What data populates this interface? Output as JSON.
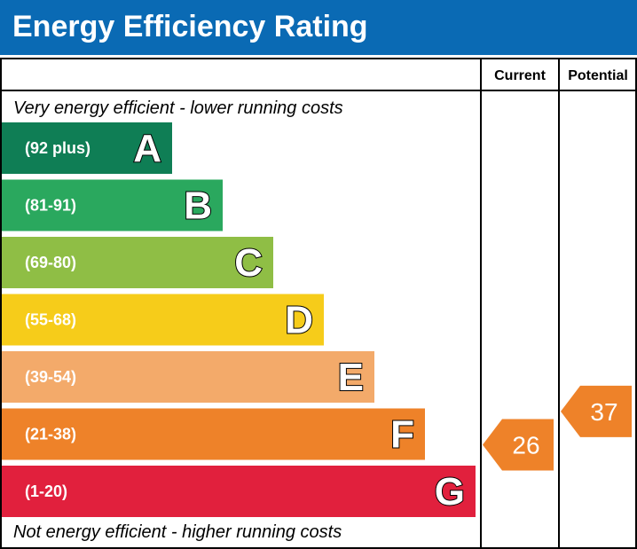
{
  "title": "Energy Efficiency Rating",
  "chart_data": {
    "type": "bar",
    "header": {
      "current": "Current",
      "potential": "Potential"
    },
    "top_note": "Very energy efficient - lower running costs",
    "bottom_note": "Not energy efficient - higher running costs",
    "bands": [
      {
        "letter": "A",
        "range": "(92 plus)",
        "min": 92,
        "max": 100,
        "color": "#0f7e55"
      },
      {
        "letter": "B",
        "range": "(81-91)",
        "min": 81,
        "max": 91,
        "color": "#2aa85e"
      },
      {
        "letter": "C",
        "range": "(69-80)",
        "min": 69,
        "max": 80,
        "color": "#8fbe45"
      },
      {
        "letter": "D",
        "range": "(55-68)",
        "min": 55,
        "max": 68,
        "color": "#f6cc1a"
      },
      {
        "letter": "E",
        "range": "(39-54)",
        "min": 39,
        "max": 54,
        "color": "#f3aa6a"
      },
      {
        "letter": "F",
        "range": "(21-38)",
        "min": 21,
        "max": 38,
        "color": "#ee8229"
      },
      {
        "letter": "G",
        "range": "(1-20)",
        "min": 1,
        "max": 20,
        "color": "#e1203d"
      }
    ],
    "current": {
      "value": 26,
      "band": "F",
      "color": "#ee8229"
    },
    "potential": {
      "value": 37,
      "band": "F",
      "color": "#ee8229"
    }
  }
}
